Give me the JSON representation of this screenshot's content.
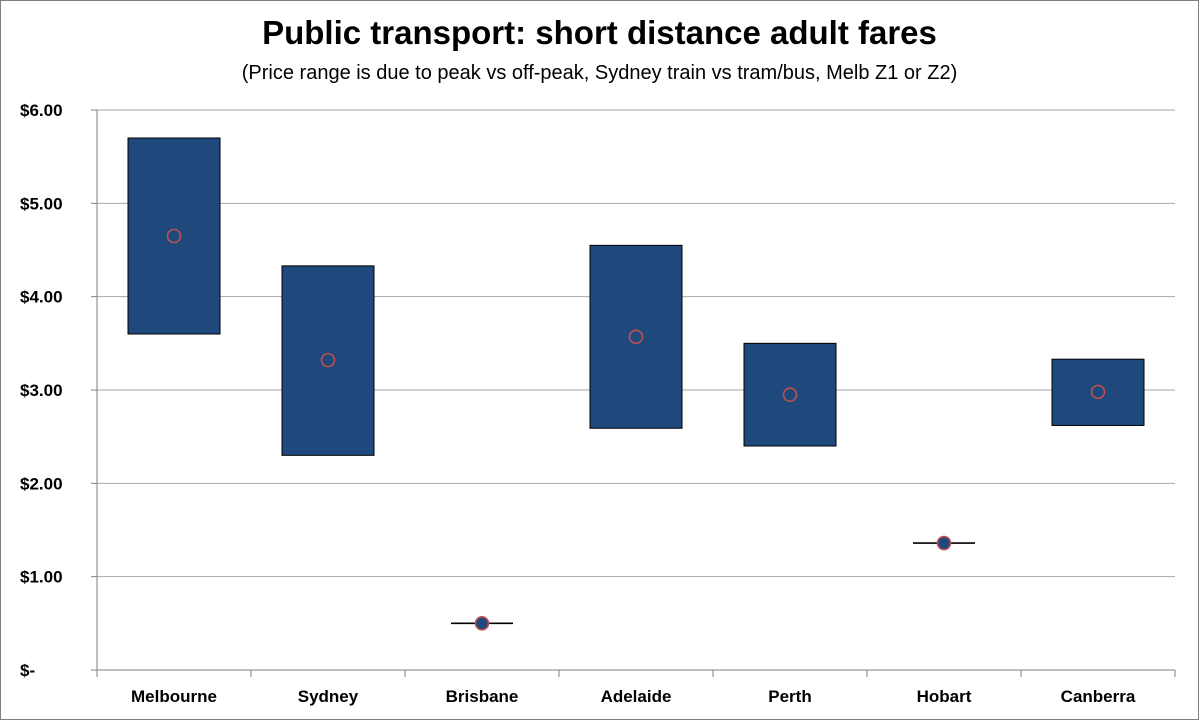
{
  "chart_data": {
    "type": "range-bar",
    "title": "Public transport: short distance adult fares",
    "subtitle": "(Price range is due to peak vs off-peak, Sydney train vs tram/bus, Melb Z1 or Z2)",
    "xlabel": "",
    "ylabel": "",
    "ylim": [
      0,
      6
    ],
    "y_ticks": [
      {
        "value": 0,
        "label": "$-"
      },
      {
        "value": 1,
        "label": "$1.00"
      },
      {
        "value": 2,
        "label": "$2.00"
      },
      {
        "value": 3,
        "label": "$3.00"
      },
      {
        "value": 4,
        "label": "$4.00"
      },
      {
        "value": 5,
        "label": "$5.00"
      },
      {
        "value": 6,
        "label": "$6.00"
      }
    ],
    "grid": true,
    "legend": "none",
    "categories": [
      "Melbourne",
      "Sydney",
      "Brisbane",
      "Adelaide",
      "Perth",
      "Hobart",
      "Canberra"
    ],
    "series": [
      {
        "values": [
          3.6,
          2.3,
          0.5,
          2.59,
          2.4,
          1.36,
          2.62
        ]
      },
      {
        "values": [
          5.7,
          4.33,
          0.5,
          4.55,
          3.5,
          1.36,
          3.33
        ]
      },
      {
        "values": [
          4.65,
          3.32,
          0.5,
          3.57,
          2.95,
          1.36,
          2.98
        ]
      }
    ],
    "colors": {
      "bar_fill": "#1f497d",
      "bar_stroke": "#000000",
      "marker_stroke": "#c0504d",
      "grid": "#a6a6a6",
      "axis": "#7f7f7f"
    }
  }
}
